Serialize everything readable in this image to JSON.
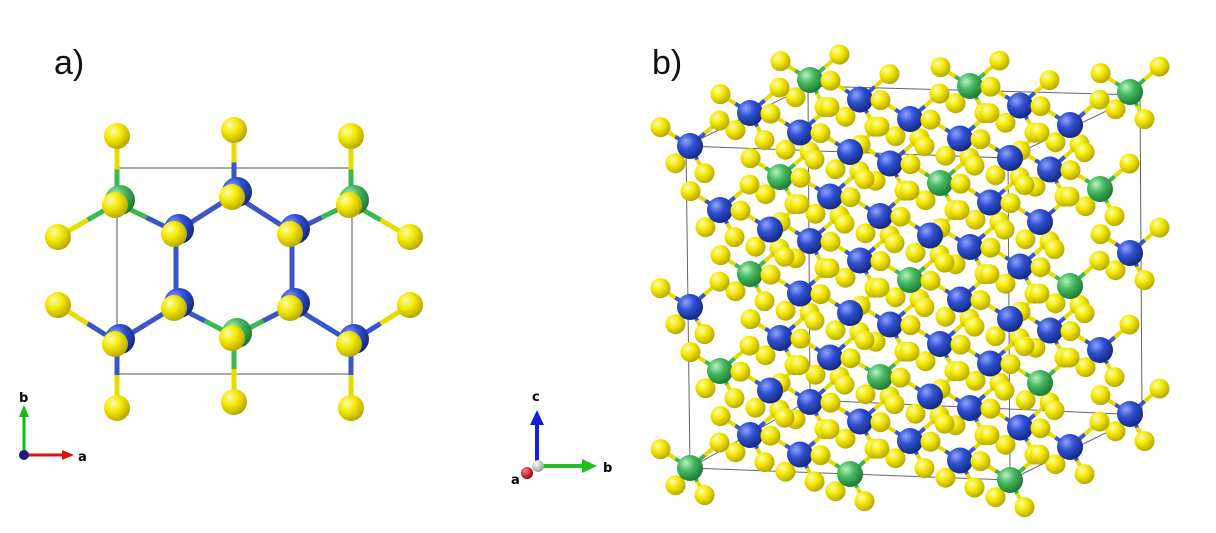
{
  "panels": {
    "a": {
      "label": "a)",
      "axes": {
        "vertical": "b",
        "horizontal": "a"
      }
    },
    "b": {
      "label": "b)",
      "axes": {
        "up": "c",
        "right": "b",
        "toward_viewer": "a"
      }
    }
  },
  "colors": {
    "sulfur": "#f2e600",
    "blue_atom": "#2e4fc4",
    "green_atom": "#3fb858",
    "bond_blue": "#3a55c8",
    "bond_green": "#3cb850",
    "bond_yellow": "#e6dc00",
    "axis_red": "#e01010",
    "axis_green": "#10c010",
    "axis_blue": "#1020e0"
  },
  "legend_icons": [
    "atom-sphere-icon",
    "bond-stick-icon",
    "axis-arrow-icon"
  ]
}
